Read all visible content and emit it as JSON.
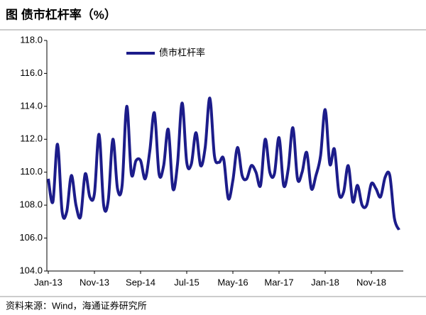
{
  "chart_data": {
    "type": "line",
    "title": "图   债市杠杆率（%）",
    "source": "资料来源：Wind，海通证券研究所",
    "categories": [
      "Jan-13",
      null,
      null,
      null,
      null,
      null,
      null,
      null,
      null,
      null,
      "Nov-13",
      null,
      null,
      null,
      null,
      null,
      null,
      null,
      null,
      null,
      "Sep-14",
      null,
      null,
      null,
      null,
      null,
      null,
      null,
      null,
      null,
      "Jul-15",
      null,
      null,
      null,
      null,
      null,
      null,
      null,
      null,
      null,
      "May-16",
      null,
      null,
      null,
      null,
      null,
      null,
      null,
      null,
      null,
      "Mar-17",
      null,
      null,
      null,
      null,
      null,
      null,
      null,
      null,
      null,
      "Jan-18",
      null,
      null,
      null,
      null,
      null,
      null,
      null,
      null,
      null,
      "Nov-18",
      null,
      null,
      null,
      null,
      null,
      null
    ],
    "series": [
      {
        "name": "债市杠杆率",
        "color": "#1c1c8a",
        "values": [
          109.6,
          108.2,
          111.7,
          107.6,
          107.6,
          109.8,
          108.0,
          107.3,
          109.9,
          108.5,
          108.7,
          112.3,
          108.0,
          108.3,
          112.0,
          109.0,
          109.2,
          114.0,
          109.9,
          110.7,
          110.7,
          109.6,
          111.3,
          113.6,
          109.9,
          110.4,
          112.6,
          109.0,
          110.5,
          114.2,
          110.6,
          110.5,
          112.4,
          110.4,
          111.5,
          114.5,
          111.0,
          110.6,
          110.8,
          108.4,
          109.5,
          111.5,
          109.8,
          109.6,
          110.4,
          110.0,
          109.2,
          112.0,
          110.0,
          109.9,
          112.1,
          109.2,
          110.2,
          112.7,
          109.6,
          110.0,
          111.2,
          109.0,
          109.8,
          111.0,
          113.8,
          110.5,
          111.4,
          108.7,
          108.8,
          110.4,
          108.2,
          109.2,
          108.0,
          108.0,
          109.3,
          109.0,
          108.5,
          109.7,
          109.8,
          107.2,
          106.5
        ]
      }
    ],
    "ylim": [
      104,
      118
    ],
    "yticks": [
      {
        "value": 104,
        "label": "104.0"
      },
      {
        "value": 106,
        "label": "106.0"
      },
      {
        "value": 108,
        "label": "108.0"
      },
      {
        "value": 110,
        "label": "110.0"
      },
      {
        "value": 112,
        "label": "112.0"
      },
      {
        "value": 114,
        "label": "114.0"
      },
      {
        "value": 116,
        "label": "116.0"
      },
      {
        "value": 118,
        "label": "118.0"
      }
    ],
    "legend": "top-left"
  }
}
